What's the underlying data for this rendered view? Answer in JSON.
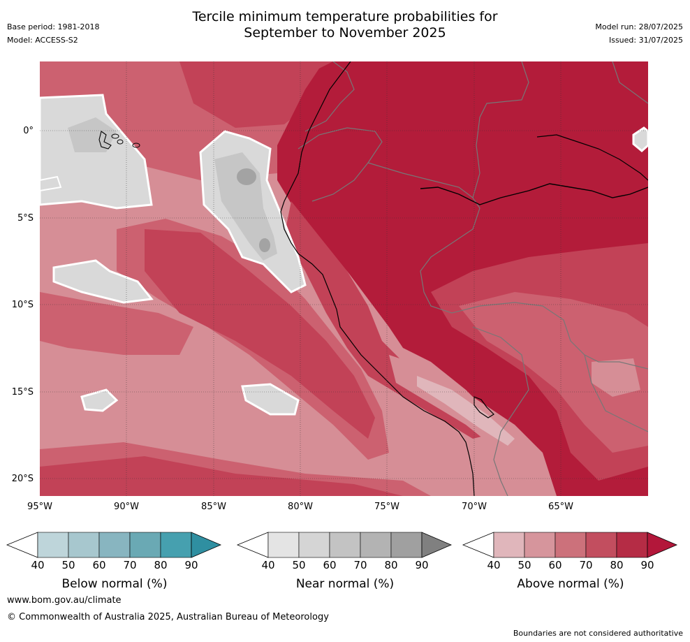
{
  "header": {
    "title_line1": "Tercile minimum temperature probabilities for",
    "title_line2": "September to November 2025",
    "base_period": "Base period: 1981-2018",
    "model": "Model: ACCESS-S2",
    "model_run": "Model run: 28/07/2025",
    "issued": "Issued: 31/07/2025"
  },
  "map": {
    "lat_labels": [
      "0°",
      "5°S",
      "10°S",
      "15°S",
      "20°S"
    ],
    "lon_labels": [
      "95°W",
      "90°W",
      "85°W",
      "80°W",
      "75°W",
      "70°W",
      "65°W"
    ],
    "colors": {
      "above_90": "#b31c3a",
      "above_80": "#c24257",
      "above_70": "#cc6170",
      "above_60": "#d68e96",
      "above_50": "#e0b6bb",
      "near_50": "#d9d9d9",
      "near_60": "#c6c6c6",
      "near_70": "#a3a3a3"
    }
  },
  "colorbars": [
    {
      "label": "Below normal (%)",
      "ticks": [
        "40",
        "50",
        "60",
        "70",
        "80",
        "90"
      ],
      "colors": [
        "#bed5da",
        "#a7c7ce",
        "#88b5c0",
        "#6aa9b4",
        "#46a0af",
        "#2f8fa1"
      ]
    },
    {
      "label": "Near normal (%)",
      "ticks": [
        "40",
        "50",
        "60",
        "70",
        "80",
        "90"
      ],
      "colors": [
        "#e4e4e4",
        "#d5d5d5",
        "#c3c3c3",
        "#b3b3b3",
        "#a0a0a0",
        "#808080"
      ]
    },
    {
      "label": "Above normal (%)",
      "ticks": [
        "40",
        "50",
        "60",
        "70",
        "80",
        "90"
      ],
      "colors": [
        "#e0b6bb",
        "#d6959c",
        "#cc717b",
        "#c24e5f",
        "#b52c45",
        "#b3173a"
      ]
    }
  ],
  "footer": {
    "website": "www.bom.gov.au/climate",
    "copyright": "© Commonwealth of Australia 2025, Australian Bureau of Meteorology",
    "disclaimer": "Boundaries are not considered authoritative"
  }
}
